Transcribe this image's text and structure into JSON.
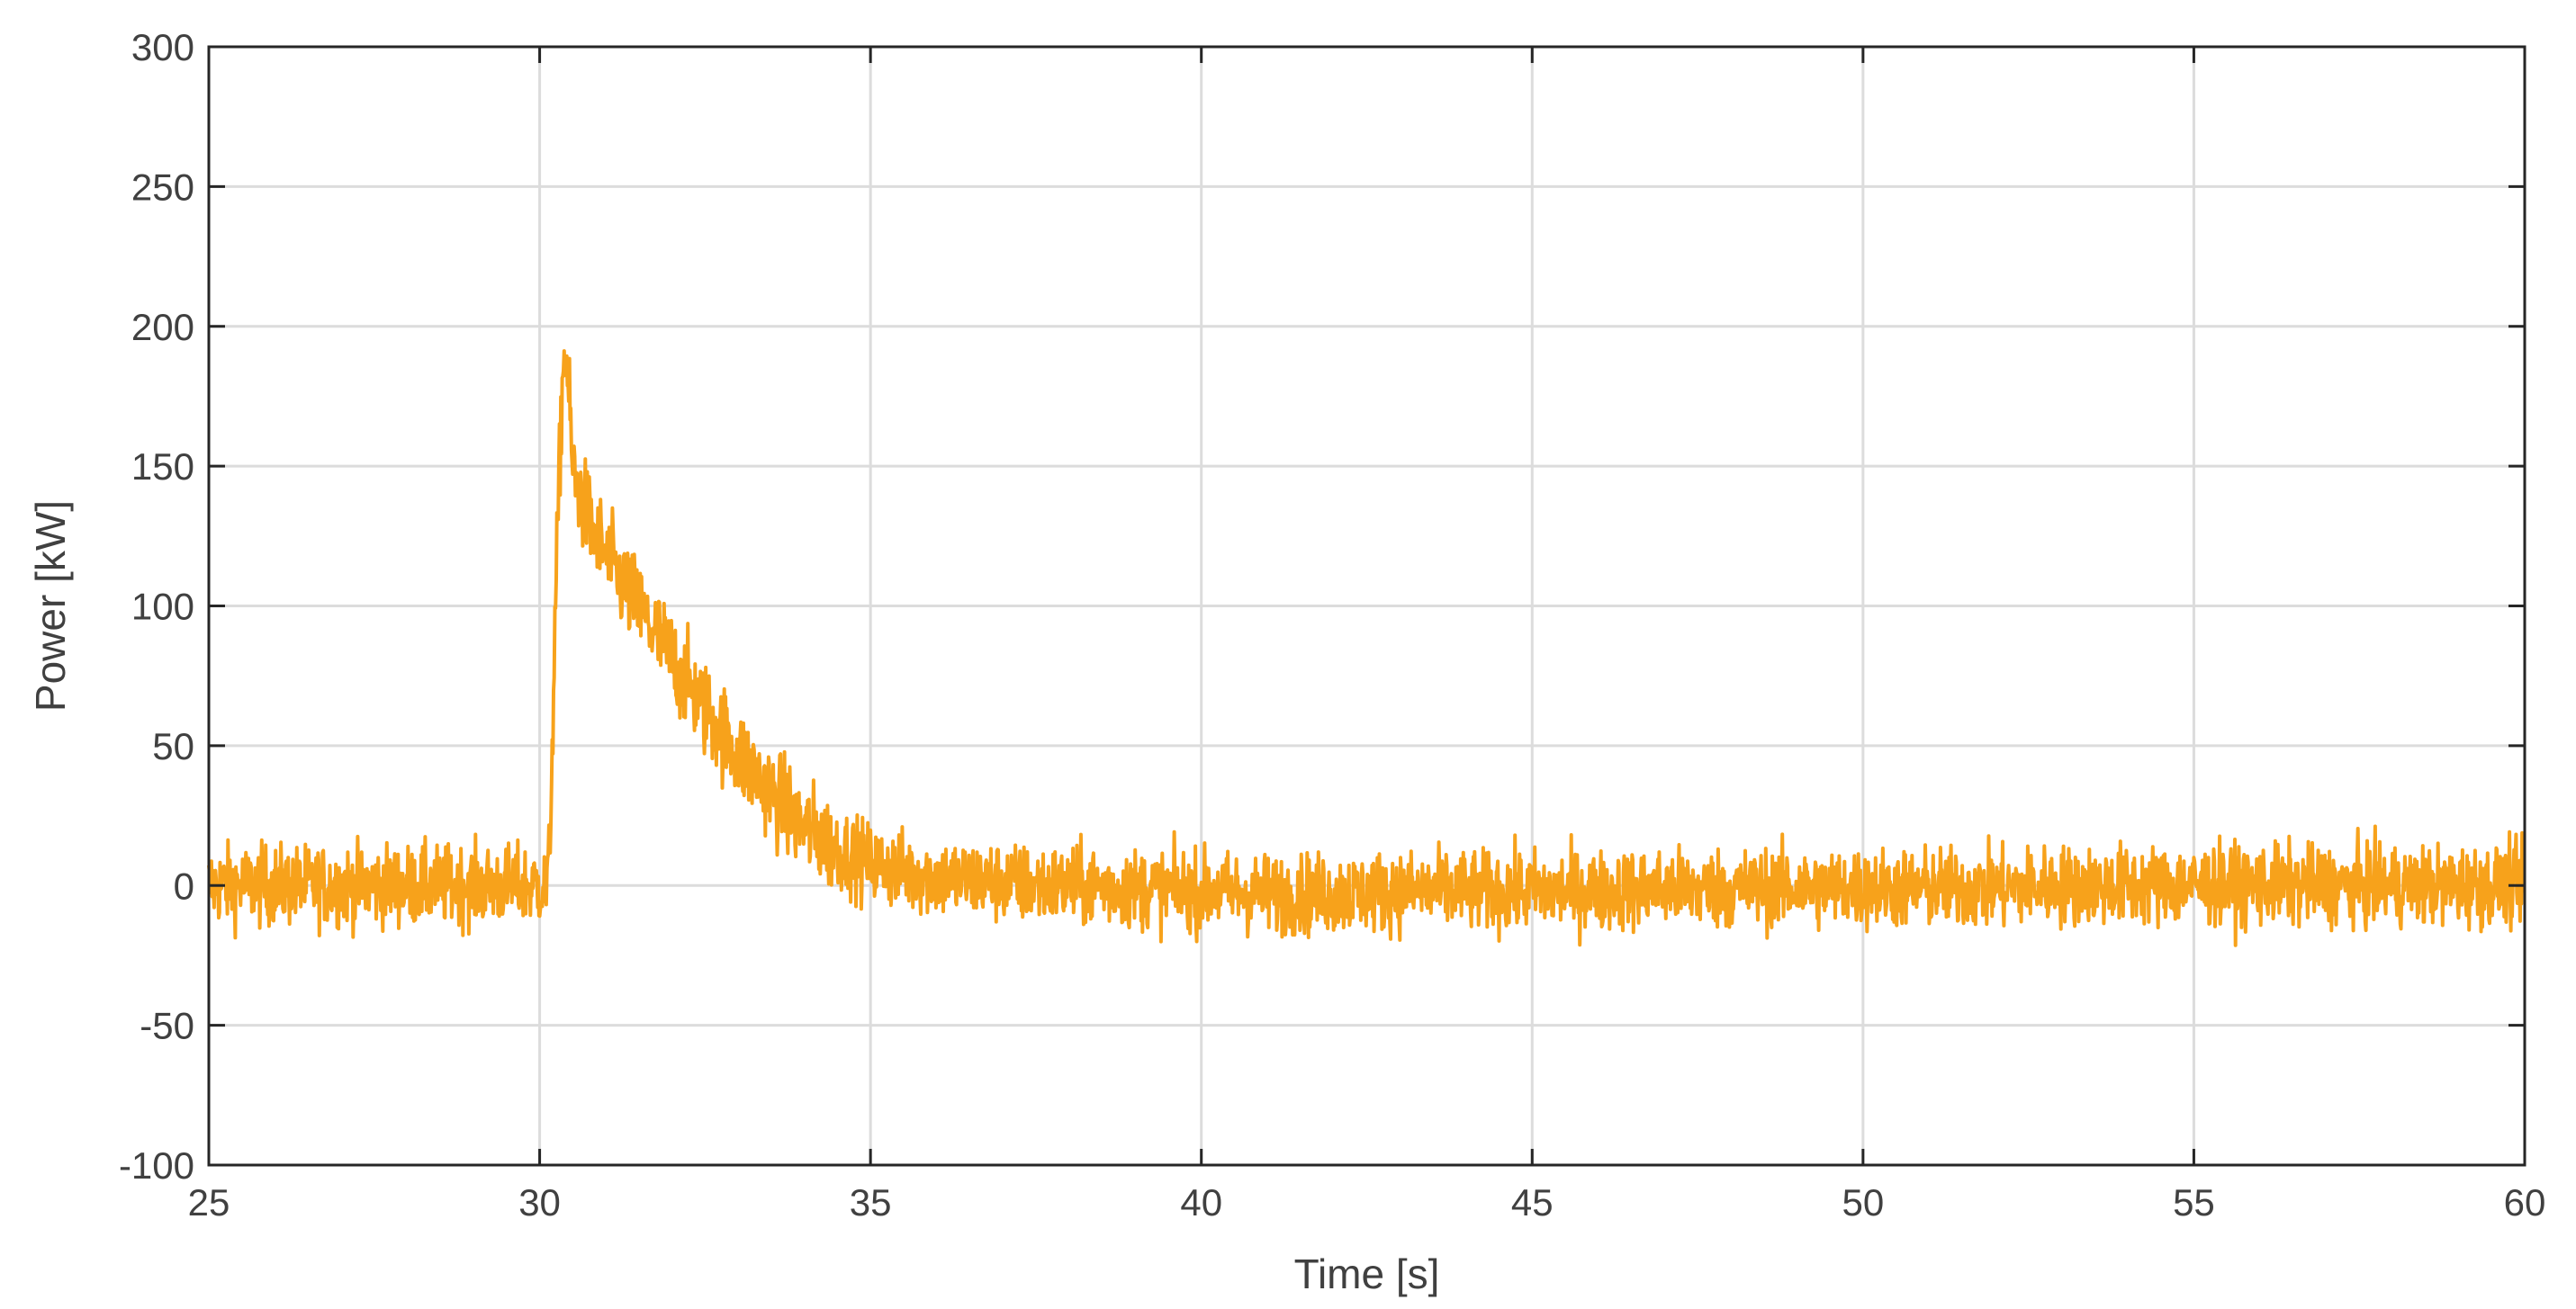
{
  "chart_data": {
    "type": "line",
    "title": "",
    "xlabel": "Time [s]",
    "ylabel": "Power [kW]",
    "xlim": [
      25,
      60
    ],
    "ylim": [
      -100,
      300
    ],
    "xticks": [
      "25",
      "30",
      "35",
      "40",
      "45",
      "50",
      "55",
      "60"
    ],
    "yticks": [
      "-100",
      "-50",
      "0",
      "50",
      "100",
      "150",
      "200",
      "250",
      "300"
    ],
    "grid": true,
    "legend": "none",
    "line_color": "#F7A21B",
    "series": [
      {
        "x": [
          25.0,
          25.5,
          26.0,
          26.5,
          27.0,
          27.5,
          28.0,
          28.5,
          29.0,
          29.5,
          30.0,
          30.1,
          30.15,
          30.2,
          30.25,
          30.3,
          30.35,
          30.4,
          30.45,
          30.5,
          30.6,
          30.8,
          31.0,
          31.25,
          31.5,
          31.75,
          32.0,
          32.25,
          32.5,
          32.75,
          33.0,
          33.25,
          33.5,
          33.75,
          34.0,
          34.25,
          34.5,
          35.0,
          35.5,
          36.0,
          36.5,
          37.0,
          37.5,
          38.0,
          39.0,
          40.0,
          41.0,
          42.0,
          43.0,
          44.0,
          45.0,
          46.0,
          47.0,
          48.0,
          49.0,
          50.0,
          51.0,
          52.0,
          53.0,
          54.0,
          55.0,
          56.0,
          57.0,
          58.0,
          59.0,
          60.0
        ],
        "y": [
          0,
          0,
          0,
          0,
          0,
          0,
          0,
          0,
          0,
          0,
          0,
          -2,
          10,
          60,
          110,
          150,
          185,
          190,
          170,
          150,
          140,
          128,
          118,
          108,
          99,
          90,
          81,
          72,
          63,
          55,
          47,
          40,
          33,
          27,
          21,
          17,
          13,
          8,
          5,
          3,
          2,
          1,
          0,
          0,
          -1,
          -2,
          -3,
          -3,
          -2,
          -2,
          -2,
          -2,
          -1,
          -1,
          -1,
          -1,
          -1,
          -1,
          0,
          0,
          0,
          0,
          0,
          0,
          0,
          0
        ]
      }
    ],
    "noise_amplitude": 12
  }
}
